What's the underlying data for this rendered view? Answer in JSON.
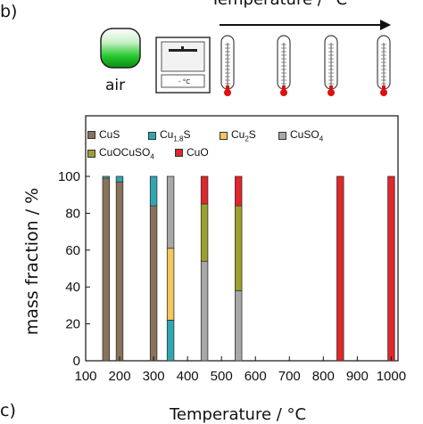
{
  "panel_labels": {
    "b": "b)",
    "c": "c)"
  },
  "schematic": {
    "title": "Temperature / °C",
    "air_label": "air",
    "oven_display": "- °C",
    "icons": [
      "air-flask-icon",
      "oven-icon",
      "thermometer-icon",
      "thermometer-icon",
      "thermometer-icon",
      "thermometer-icon"
    ],
    "arrow_icon": "arrow-right-icon"
  },
  "bottom_title": "Temperature / °C",
  "colors": {
    "CuS": "#8B7258",
    "Cu1.8S": "#2FA7B0",
    "Cu2S": "#F2C75C",
    "CuSO4": "#A8A8A8",
    "CuOCuSO4": "#9DA02E",
    "CuO": "#E1262B",
    "air_green": "#1FCB2A"
  },
  "legend": [
    {
      "key": "CuS",
      "base": "CuS",
      "sub": "",
      "tail": ""
    },
    {
      "key": "Cu1.8S",
      "base": "Cu",
      "sub": "1,8",
      "tail": "S"
    },
    {
      "key": "Cu2S",
      "base": "Cu",
      "sub": "2",
      "tail": "S"
    },
    {
      "key": "CuSO4",
      "base": "CuSO",
      "sub": "4",
      "tail": ""
    },
    {
      "key": "CuOCuSO4",
      "base": "CuOCuSO",
      "sub": "4",
      "tail": ""
    },
    {
      "key": "CuO",
      "base": "CuO",
      "sub": "",
      "tail": ""
    }
  ],
  "chart_data": {
    "type": "bar",
    "stacked": true,
    "xlabel": "",
    "ylabel": "mass fraction / %",
    "xlim": [
      100,
      1020
    ],
    "ylim": [
      0,
      100
    ],
    "xticks": [
      100,
      200,
      300,
      400,
      500,
      600,
      700,
      800,
      900,
      1000
    ],
    "yticks": [
      0,
      20,
      40,
      60,
      80,
      100
    ],
    "bar_width": 20,
    "series_order": [
      "CuS",
      "Cu1.8S",
      "Cu2S",
      "CuSO4",
      "CuOCuSO4",
      "CuO"
    ],
    "bars": [
      {
        "x": 160,
        "segments": {
          "CuS": 99,
          "Cu1.8S": 1
        }
      },
      {
        "x": 200,
        "segments": {
          "CuS": 97,
          "Cu1.8S": 3
        }
      },
      {
        "x": 300,
        "segments": {
          "CuS": 84,
          "Cu1.8S": 16
        }
      },
      {
        "x": 350,
        "segments": {
          "Cu1.8S": 22,
          "Cu2S": 39,
          "CuSO4": 39
        }
      },
      {
        "x": 450,
        "segments": {
          "CuSO4": 54,
          "CuOCuSO4": 31,
          "CuO": 15
        }
      },
      {
        "x": 550,
        "segments": {
          "CuSO4": 38,
          "CuOCuSO4": 46,
          "CuO": 16
        }
      },
      {
        "x": 850,
        "segments": {
          "CuO": 100
        }
      },
      {
        "x": 1000,
        "segments": {
          "CuO": 100
        }
      }
    ]
  }
}
